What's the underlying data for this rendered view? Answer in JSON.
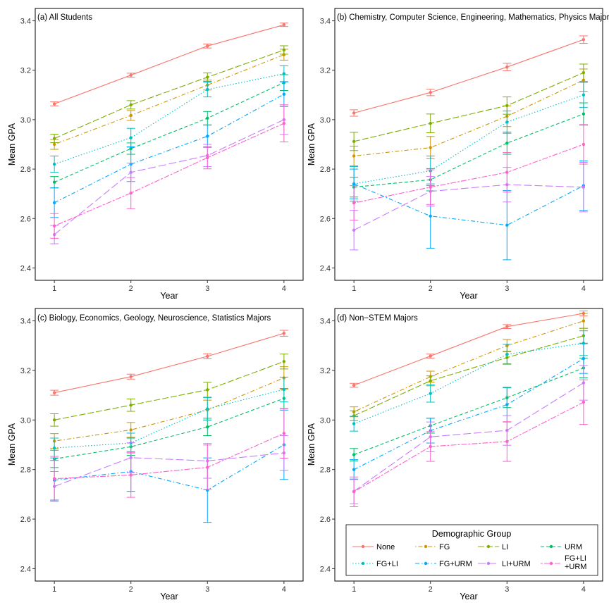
{
  "figure": {
    "legend": {
      "title": "Demographic Group",
      "entries": [
        {
          "name": "None",
          "color": "#F8766D",
          "dash": "solid"
        },
        {
          "name": "FG",
          "color": "#CD9600",
          "dash": "dotdash"
        },
        {
          "name": "LI",
          "color": "#7CAE00",
          "dash": "longdash"
        },
        {
          "name": "URM",
          "color": "#00BE67",
          "dash": "dashed"
        },
        {
          "name": "FG+LI",
          "color": "#00BFC4",
          "dash": "dotted"
        },
        {
          "name": "FG+URM",
          "color": "#00A9FF",
          "dash": "dashdot"
        },
        {
          "name": "LI+URM",
          "color": "#C77CFF",
          "dash": "longdash2"
        },
        {
          "name": "FG+LI\n+URM",
          "color": "#FF61CC",
          "dash": "twodash"
        }
      ]
    }
  },
  "chart_data": [
    {
      "type": "line",
      "title": "(a) All Students",
      "xlabel": "Year",
      "ylabel": "Mean GPA",
      "x": [
        1,
        2,
        3,
        4
      ],
      "xlim": [
        0.75,
        4.25
      ],
      "ylim": [
        2.35,
        3.45
      ],
      "yticks": [
        2.4,
        2.6,
        2.8,
        3.0,
        3.2,
        3.4
      ],
      "ytick_labels": [
        "2.4",
        "2.6",
        "2.8",
        "3.0",
        "3.2",
        "3.4"
      ],
      "xtick_labels": [
        "1",
        "2",
        "3",
        "4"
      ],
      "grid": false,
      "series": [
        {
          "name": "None",
          "values": [
            3.064,
            3.18,
            3.298,
            3.384
          ],
          "err": [
            0.008,
            0.008,
            0.008,
            0.007
          ]
        },
        {
          "name": "FG",
          "values": [
            2.9,
            3.017,
            3.14,
            3.263
          ],
          "err": [
            0.02,
            0.02,
            0.02,
            0.022
          ]
        },
        {
          "name": "LI",
          "values": [
            2.924,
            3.06,
            3.172,
            3.282
          ],
          "err": [
            0.017,
            0.017,
            0.017,
            0.017
          ]
        },
        {
          "name": "URM",
          "values": [
            2.747,
            2.883,
            3.006,
            3.15
          ],
          "err": [
            0.023,
            0.023,
            0.027,
            0.032
          ]
        },
        {
          "name": "FG+LI",
          "values": [
            2.82,
            2.927,
            3.122,
            3.186
          ],
          "err": [
            0.033,
            0.038,
            0.03,
            0.032
          ]
        },
        {
          "name": "FG+URM",
          "values": [
            2.664,
            2.82,
            2.933,
            3.103
          ],
          "err": [
            0.06,
            0.07,
            0.045,
            0.05
          ]
        },
        {
          "name": "LI+URM",
          "values": [
            2.535,
            2.787,
            2.855,
            3.0
          ],
          "err": [
            0.037,
            0.037,
            0.045,
            0.06
          ]
        },
        {
          "name": "FG+LI\n+URM",
          "values": [
            2.57,
            2.703,
            2.846,
            2.985
          ],
          "err": [
            0.05,
            0.063,
            0.045,
            0.075
          ]
        }
      ]
    },
    {
      "type": "line",
      "title": "(b) Chemistry, Computer Science, Engineering, Mathematics, Physics Majors",
      "xlabel": "Year",
      "ylabel": "Mean GPA",
      "x": [
        1,
        2,
        3,
        4
      ],
      "xlim": [
        0.75,
        4.25
      ],
      "ylim": [
        2.35,
        3.45
      ],
      "yticks": [
        2.4,
        2.6,
        2.8,
        3.0,
        3.2,
        3.4
      ],
      "ytick_labels": [
        "2.4",
        "2.6",
        "2.8",
        "3.0",
        "3.2",
        "3.4"
      ],
      "xtick_labels": [
        "1",
        "2",
        "3",
        "4"
      ],
      "grid": false,
      "series": [
        {
          "name": "None",
          "values": [
            3.027,
            3.11,
            3.213,
            3.324
          ],
          "err": [
            0.013,
            0.013,
            0.015,
            0.015
          ]
        },
        {
          "name": "FG",
          "values": [
            2.853,
            2.887,
            3.014,
            3.16
          ],
          "err": [
            0.04,
            0.045,
            0.042,
            0.045
          ]
        },
        {
          "name": "LI",
          "values": [
            2.912,
            2.985,
            3.057,
            3.19
          ],
          "err": [
            0.037,
            0.038,
            0.035,
            0.035
          ]
        },
        {
          "name": "URM",
          "values": [
            2.727,
            2.757,
            2.905,
            3.023
          ],
          "err": [
            0.04,
            0.045,
            0.045,
            0.045
          ]
        },
        {
          "name": "FG+LI",
          "values": [
            2.74,
            2.793,
            2.99,
            3.1
          ],
          "err": [
            0.07,
            0.06,
            0.045,
            0.05
          ]
        },
        {
          "name": "FG+URM",
          "values": [
            2.74,
            2.61,
            2.573,
            2.733
          ],
          "err": [
            0.06,
            0.13,
            0.14,
            0.1
          ]
        },
        {
          "name": "LI+URM",
          "values": [
            2.553,
            2.71,
            2.737,
            2.727
          ],
          "err": [
            0.08,
            0.06,
            0.07,
            0.1
          ]
        },
        {
          "name": "FG+LI\n+URM",
          "values": [
            2.663,
            2.727,
            2.787,
            2.9
          ],
          "err": [
            0.07,
            0.07,
            0.08,
            0.08
          ]
        }
      ]
    },
    {
      "type": "line",
      "title": "(c) Biology, Economics, Geology, Neuroscience, Statistics Majors",
      "xlabel": "Year",
      "ylabel": "Mean GPA",
      "x": [
        1,
        2,
        3,
        4
      ],
      "xlim": [
        0.75,
        4.25
      ],
      "ylim": [
        2.35,
        3.45
      ],
      "yticks": [
        2.4,
        2.6,
        2.8,
        3.0,
        3.2,
        3.4
      ],
      "ytick_labels": [
        "2.4",
        "2.6",
        "2.8",
        "3.0",
        "3.2",
        "3.4"
      ],
      "xtick_labels": [
        "1",
        "2",
        "3",
        "4"
      ],
      "grid": false,
      "series": [
        {
          "name": "None",
          "values": [
            3.11,
            3.175,
            3.257,
            3.35
          ],
          "err": [
            0.01,
            0.01,
            0.01,
            0.012
          ]
        },
        {
          "name": "FG",
          "values": [
            2.915,
            2.96,
            3.04,
            3.17
          ],
          "err": [
            0.03,
            0.03,
            0.04,
            0.045
          ]
        },
        {
          "name": "LI",
          "values": [
            3.0,
            3.06,
            3.122,
            3.236
          ],
          "err": [
            0.025,
            0.025,
            0.03,
            0.03
          ]
        },
        {
          "name": "URM",
          "values": [
            2.843,
            2.892,
            2.972,
            3.087
          ],
          "err": [
            0.035,
            0.035,
            0.035,
            0.04
          ]
        },
        {
          "name": "FG+LI",
          "values": [
            2.887,
            2.907,
            3.045,
            3.123
          ],
          "err": [
            0.04,
            0.04,
            0.045,
            0.05
          ]
        },
        {
          "name": "FG+URM",
          "values": [
            2.757,
            2.792,
            2.717,
            2.9
          ],
          "err": [
            0.08,
            0.08,
            0.13,
            0.14
          ]
        },
        {
          "name": "LI+URM",
          "values": [
            2.732,
            2.848,
            2.835,
            2.867
          ],
          "err": [
            0.06,
            0.06,
            0.07,
            0.07
          ]
        },
        {
          "name": "FG+LI\n+URM",
          "values": [
            2.763,
            2.778,
            2.809,
            2.946
          ],
          "err": [
            0.09,
            0.09,
            0.09,
            0.1
          ]
        }
      ]
    },
    {
      "type": "line",
      "title": "(d) Non−STEM Majors",
      "xlabel": "Year",
      "ylabel": "Mean GPA",
      "x": [
        1,
        2,
        3,
        4
      ],
      "xlim": [
        0.75,
        4.25
      ],
      "ylim": [
        2.35,
        3.45
      ],
      "yticks": [
        2.4,
        2.6,
        2.8,
        3.0,
        3.2,
        3.4
      ],
      "ytick_labels": [
        "2.4",
        "2.6",
        "2.8",
        "3.0",
        "3.2",
        "3.4"
      ],
      "xtick_labels": [
        "1",
        "2",
        "3",
        "4"
      ],
      "grid": false,
      "series": [
        {
          "name": "None",
          "values": [
            3.14,
            3.258,
            3.377,
            3.43
          ],
          "err": [
            0.008,
            0.008,
            0.008,
            0.01
          ]
        },
        {
          "name": "FG",
          "values": [
            3.033,
            3.175,
            3.3,
            3.4
          ],
          "err": [
            0.02,
            0.022,
            0.025,
            0.03
          ]
        },
        {
          "name": "LI",
          "values": [
            3.017,
            3.158,
            3.252,
            3.34
          ],
          "err": [
            0.02,
            0.02,
            0.025,
            0.03
          ]
        },
        {
          "name": "URM",
          "values": [
            2.86,
            2.977,
            3.09,
            3.21
          ],
          "err": [
            0.025,
            0.03,
            0.04,
            0.04
          ]
        },
        {
          "name": "FG+LI",
          "values": [
            2.985,
            3.107,
            3.265,
            3.31
          ],
          "err": [
            0.03,
            0.035,
            0.04,
            0.05
          ]
        },
        {
          "name": "FG+URM",
          "values": [
            2.8,
            2.957,
            3.062,
            3.248
          ],
          "err": [
            0.04,
            0.05,
            0.07,
            0.06
          ]
        },
        {
          "name": "LI+URM",
          "values": [
            2.712,
            2.932,
            2.958,
            3.15
          ],
          "err": [
            0.05,
            0.06,
            0.06,
            0.07
          ]
        },
        {
          "name": "FG+LI\n+URM",
          "values": [
            2.71,
            2.893,
            2.913,
            3.072
          ],
          "err": [
            0.06,
            0.06,
            0.08,
            0.09
          ]
        }
      ]
    }
  ]
}
